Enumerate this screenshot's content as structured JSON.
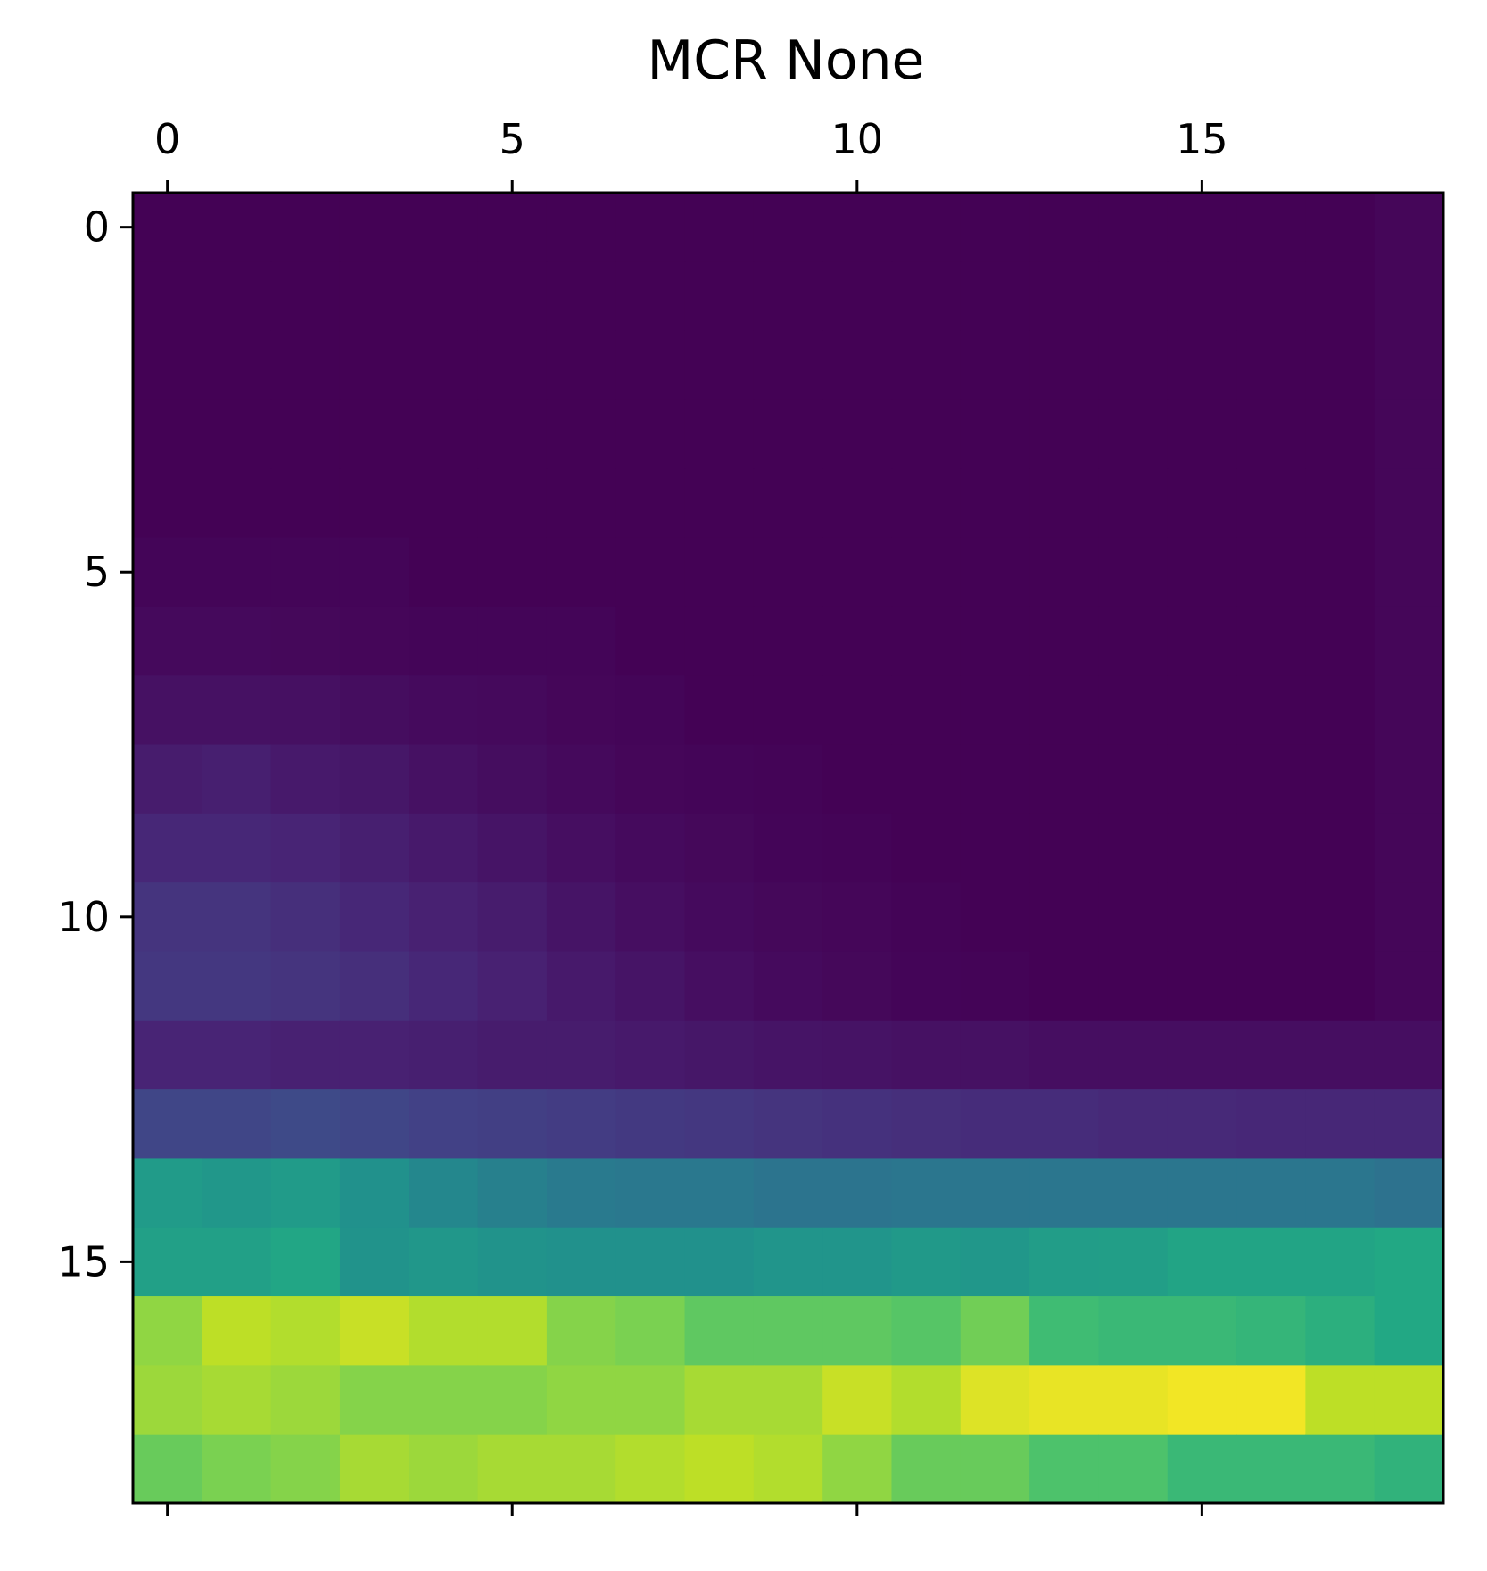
{
  "chart_data": {
    "type": "heatmap",
    "title": "MCR None",
    "colormap": "viridis",
    "xlabel": "",
    "ylabel": "",
    "x_ticks": [
      0,
      5,
      10,
      15
    ],
    "y_ticks": [
      0,
      5,
      10,
      15
    ],
    "x_ticks_position": "top",
    "y_axis_direction": "top-to-bottom",
    "xlim": [
      -0.5,
      18.5
    ],
    "ylim": [
      -0.5,
      18.5
    ],
    "n_rows": 19,
    "n_cols": 19,
    "grid": false,
    "legend": "none",
    "value_range": [
      0,
      1
    ],
    "values": [
      [
        0.005,
        0.005,
        0.005,
        0.005,
        0.005,
        0.005,
        0.005,
        0.005,
        0.005,
        0.005,
        0.005,
        0.005,
        0.005,
        0.005,
        0.005,
        0.005,
        0.005,
        0.005,
        0.02
      ],
      [
        0.005,
        0.005,
        0.005,
        0.005,
        0.005,
        0.005,
        0.005,
        0.005,
        0.005,
        0.005,
        0.005,
        0.005,
        0.005,
        0.005,
        0.005,
        0.005,
        0.005,
        0.005,
        0.02
      ],
      [
        0.005,
        0.005,
        0.005,
        0.005,
        0.005,
        0.005,
        0.005,
        0.005,
        0.005,
        0.005,
        0.005,
        0.005,
        0.005,
        0.005,
        0.005,
        0.005,
        0.005,
        0.005,
        0.02
      ],
      [
        0.005,
        0.005,
        0.005,
        0.005,
        0.005,
        0.005,
        0.005,
        0.005,
        0.005,
        0.005,
        0.005,
        0.005,
        0.005,
        0.005,
        0.005,
        0.005,
        0.005,
        0.005,
        0.02
      ],
      [
        0.005,
        0.005,
        0.005,
        0.005,
        0.005,
        0.005,
        0.005,
        0.005,
        0.005,
        0.005,
        0.005,
        0.005,
        0.005,
        0.005,
        0.005,
        0.005,
        0.005,
        0.005,
        0.02
      ],
      [
        0.015,
        0.015,
        0.015,
        0.015,
        0.005,
        0.005,
        0.005,
        0.005,
        0.005,
        0.005,
        0.005,
        0.005,
        0.005,
        0.005,
        0.005,
        0.005,
        0.005,
        0.005,
        0.02
      ],
      [
        0.03,
        0.03,
        0.025,
        0.02,
        0.015,
        0.015,
        0.015,
        0.005,
        0.005,
        0.005,
        0.005,
        0.005,
        0.005,
        0.005,
        0.005,
        0.005,
        0.005,
        0.005,
        0.02
      ],
      [
        0.06,
        0.06,
        0.055,
        0.045,
        0.035,
        0.03,
        0.02,
        0.015,
        0.005,
        0.005,
        0.005,
        0.005,
        0.005,
        0.005,
        0.005,
        0.005,
        0.005,
        0.005,
        0.02
      ],
      [
        0.1,
        0.11,
        0.09,
        0.08,
        0.06,
        0.045,
        0.03,
        0.02,
        0.015,
        0.01,
        0.005,
        0.005,
        0.005,
        0.005,
        0.005,
        0.005,
        0.005,
        0.005,
        0.02
      ],
      [
        0.14,
        0.14,
        0.13,
        0.11,
        0.09,
        0.07,
        0.05,
        0.035,
        0.025,
        0.015,
        0.01,
        0.005,
        0.005,
        0.005,
        0.005,
        0.005,
        0.005,
        0.005,
        0.02
      ],
      [
        0.19,
        0.19,
        0.17,
        0.14,
        0.12,
        0.1,
        0.07,
        0.05,
        0.035,
        0.025,
        0.02,
        0.01,
        0.005,
        0.005,
        0.005,
        0.005,
        0.005,
        0.005,
        0.02
      ],
      [
        0.2,
        0.2,
        0.19,
        0.17,
        0.14,
        0.12,
        0.09,
        0.07,
        0.05,
        0.035,
        0.025,
        0.015,
        0.01,
        0.005,
        0.005,
        0.005,
        0.005,
        0.005,
        0.02
      ],
      [
        0.13,
        0.13,
        0.12,
        0.12,
        0.11,
        0.1,
        0.1,
        0.09,
        0.08,
        0.07,
        0.065,
        0.06,
        0.06,
        0.05,
        0.05,
        0.05,
        0.05,
        0.05,
        0.05
      ],
      [
        0.26,
        0.26,
        0.28,
        0.26,
        0.24,
        0.23,
        0.22,
        0.21,
        0.2,
        0.19,
        0.18,
        0.17,
        0.16,
        0.16,
        0.15,
        0.15,
        0.14,
        0.14,
        0.14
      ],
      [
        0.68,
        0.66,
        0.68,
        0.63,
        0.58,
        0.54,
        0.51,
        0.5,
        0.5,
        0.48,
        0.48,
        0.49,
        0.49,
        0.49,
        0.49,
        0.49,
        0.49,
        0.49,
        0.47
      ],
      [
        0.71,
        0.71,
        0.74,
        0.64,
        0.66,
        0.64,
        0.63,
        0.63,
        0.63,
        0.65,
        0.65,
        0.67,
        0.66,
        0.69,
        0.7,
        0.73,
        0.73,
        0.73,
        0.75
      ],
      [
        0.9,
        0.94,
        0.93,
        0.95,
        0.93,
        0.93,
        0.89,
        0.88,
        0.85,
        0.85,
        0.85,
        0.84,
        0.87,
        0.81,
        0.8,
        0.8,
        0.79,
        0.77,
        0.75
      ],
      [
        0.91,
        0.92,
        0.91,
        0.89,
        0.89,
        0.89,
        0.9,
        0.9,
        0.92,
        0.92,
        0.95,
        0.93,
        0.97,
        0.98,
        0.98,
        0.99,
        0.99,
        0.94,
        0.94
      ],
      [
        0.86,
        0.88,
        0.89,
        0.92,
        0.91,
        0.92,
        0.92,
        0.93,
        0.94,
        0.93,
        0.9,
        0.86,
        0.86,
        0.83,
        0.83,
        0.8,
        0.8,
        0.8,
        0.78
      ]
    ]
  }
}
